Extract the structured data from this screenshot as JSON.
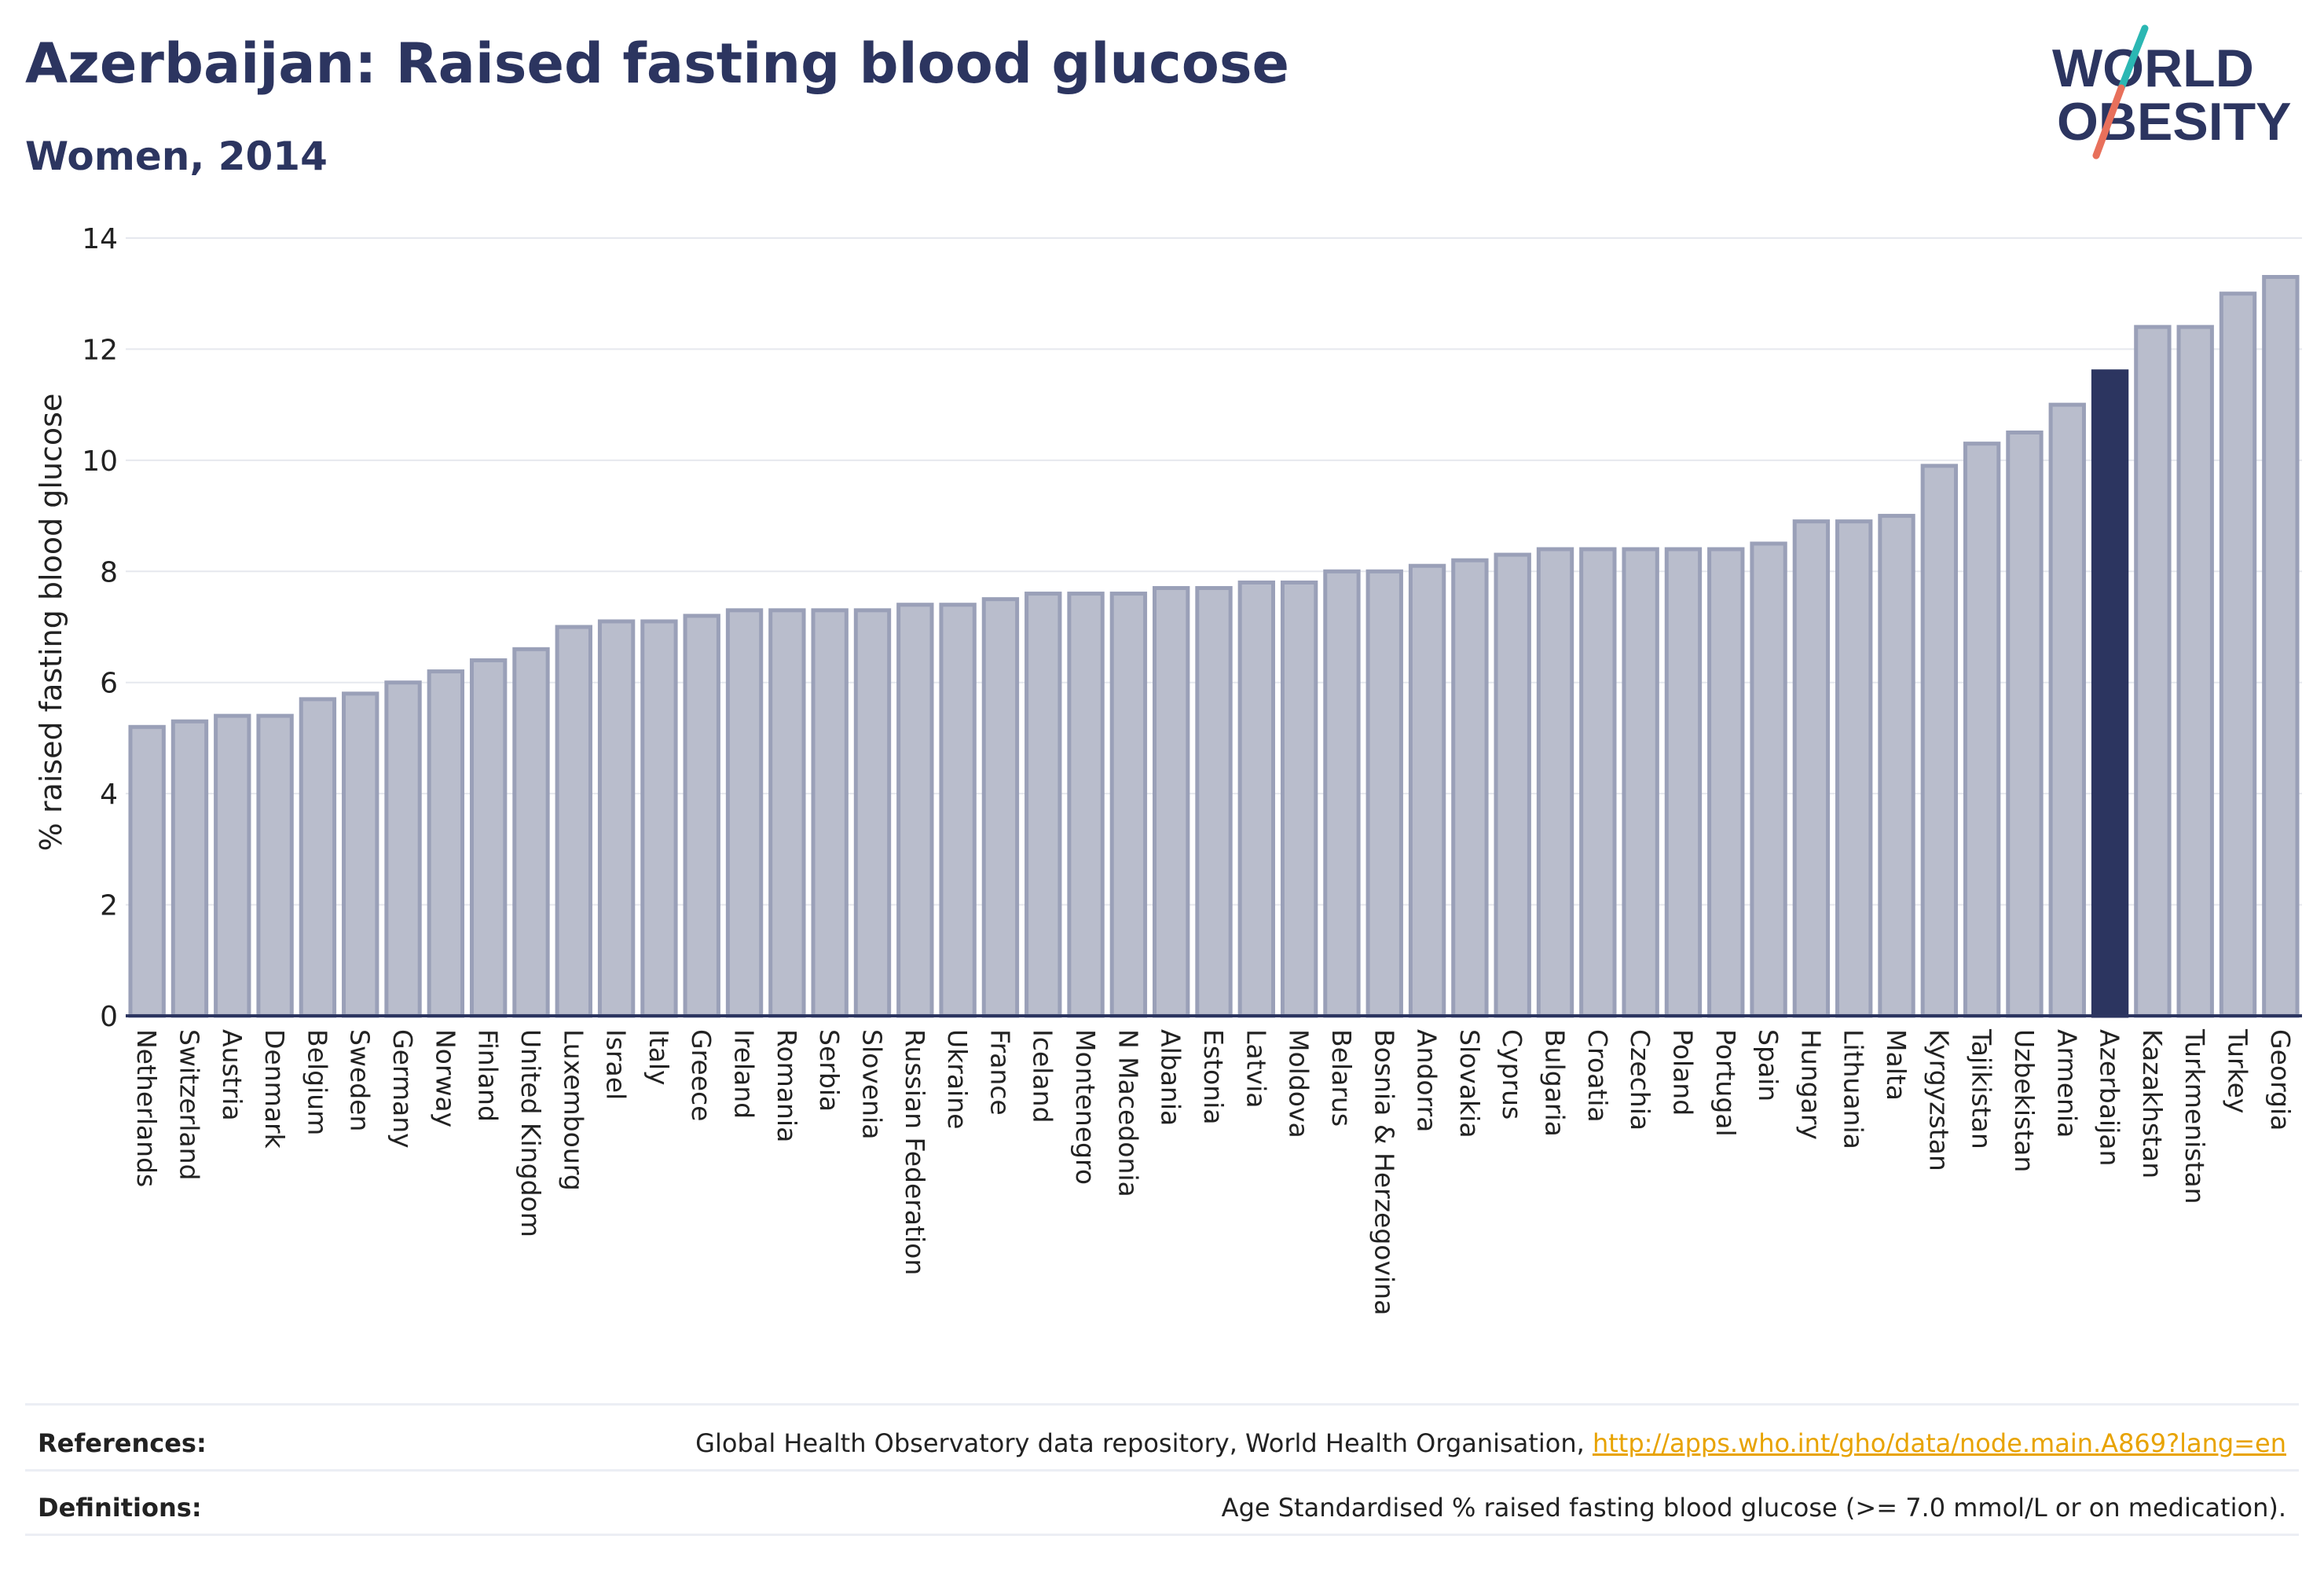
{
  "header": {
    "title": "Azerbaijan: Raised fasting blood glucose",
    "subtitle": "Women, 2014"
  },
  "logo": {
    "line1": "WORLD",
    "line2": "OBESITY"
  },
  "chart_data": {
    "type": "bar",
    "ylabel": "% raised fasting blood glucose",
    "xlabel": "",
    "ylim": [
      0,
      14
    ],
    "yticks": [
      0,
      2,
      4,
      6,
      8,
      10,
      12,
      14
    ],
    "grid": true,
    "highlight": "Azerbaijan",
    "colors": {
      "bar": "#b9bdcc",
      "bar_edge": "#9aa0b8",
      "highlight": "#2c3560",
      "grid": "#e6e8ee",
      "axis": "#2c3560"
    },
    "categories": [
      "Netherlands",
      "Switzerland",
      "Austria",
      "Denmark",
      "Belgium",
      "Sweden",
      "Germany",
      "Norway",
      "Finland",
      "United Kingdom",
      "Luxembourg",
      "Israel",
      "Italy",
      "Greece",
      "Ireland",
      "Romania",
      "Serbia",
      "Slovenia",
      "Russian Federation",
      "Ukraine",
      "France",
      "Iceland",
      "Montenegro",
      "N Macedonia",
      "Albania",
      "Estonia",
      "Latvia",
      "Moldova",
      "Belarus",
      "Bosnia & Herzegovina",
      "Andorra",
      "Slovakia",
      "Cyprus",
      "Bulgaria",
      "Croatia",
      "Czechia",
      "Poland",
      "Portugal",
      "Spain",
      "Hungary",
      "Lithuania",
      "Malta",
      "Kyrgyzstan",
      "Tajikistan",
      "Uzbekistan",
      "Armenia",
      "Azerbaijan",
      "Kazakhstan",
      "Turkmenistan",
      "Turkey",
      "Georgia"
    ],
    "values": [
      5.2,
      5.3,
      5.4,
      5.4,
      5.7,
      5.8,
      6.0,
      6.2,
      6.4,
      6.6,
      7.0,
      7.1,
      7.1,
      7.2,
      7.3,
      7.3,
      7.3,
      7.3,
      7.4,
      7.4,
      7.5,
      7.6,
      7.6,
      7.6,
      7.7,
      7.7,
      7.8,
      7.8,
      8.0,
      8.0,
      8.1,
      8.2,
      8.3,
      8.4,
      8.4,
      8.4,
      8.4,
      8.4,
      8.5,
      8.9,
      8.9,
      9.0,
      9.9,
      10.3,
      10.5,
      11.0,
      11.6,
      12.4,
      12.4,
      13.0,
      13.3
    ]
  },
  "footer": {
    "references_label": "References:",
    "references_text": "Global Health Observatory data repository, World Health Organisation, ",
    "references_link": "http://apps.who.int/gho/data/node.main.A869?lang=en",
    "definitions_label": "Definitions:",
    "definitions_text": "Age Standardised % raised fasting blood glucose (>= 7.0 mmol/L or on medication)."
  }
}
